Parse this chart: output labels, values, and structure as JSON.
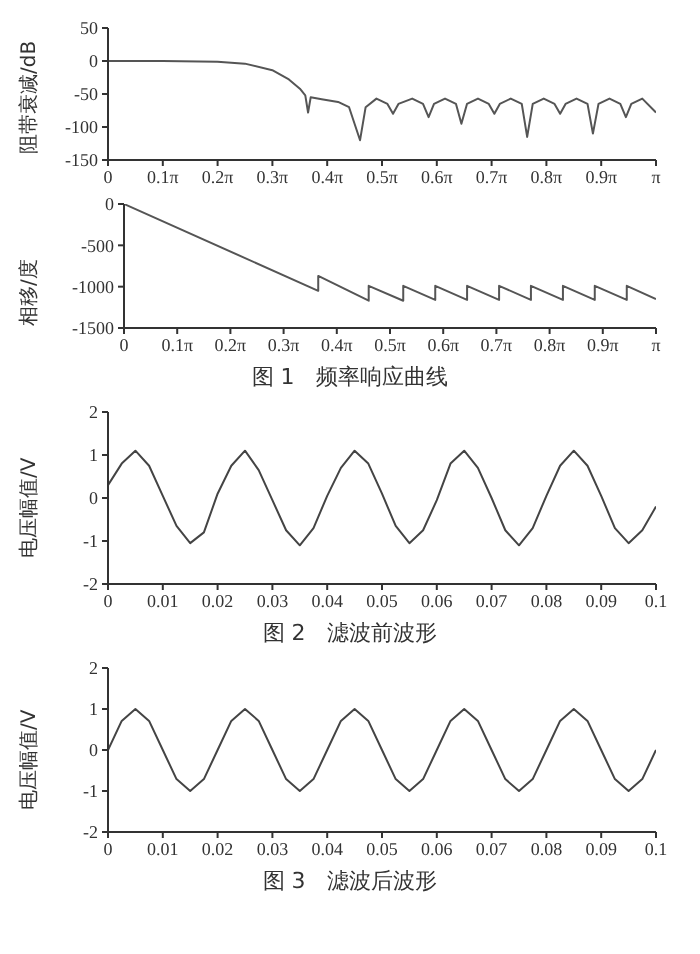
{
  "chart_data": [
    {
      "type": "line",
      "ylabel": "阻带衰减/dB",
      "xlim": [
        0,
        3.1416
      ],
      "xticks": [
        0,
        {
          "value": 0.3142,
          "label": "0.1π"
        },
        {
          "value": 0.6283,
          "label": "0.2π"
        },
        {
          "value": 0.9425,
          "label": "0.3π"
        },
        {
          "value": 1.2566,
          "label": "0.4π"
        },
        {
          "value": 1.5708,
          "label": "0.5π"
        },
        {
          "value": 1.885,
          "label": "0.6π"
        },
        {
          "value": 2.1991,
          "label": "0.7π"
        },
        {
          "value": 2.5133,
          "label": "0.8π"
        },
        {
          "value": 2.8274,
          "label": "0.9π"
        },
        {
          "value": 3.1416,
          "label": "π"
        }
      ],
      "ylim": [
        -150,
        50
      ],
      "yticks": [
        -150,
        -100,
        -50,
        0,
        50
      ],
      "series": [
        {
          "color": "#555555",
          "x": [
            0,
            0.314,
            0.628,
            0.785,
            0.942,
            1.037,
            1.1,
            1.131,
            1.147,
            1.162,
            1.225,
            1.319,
            1.382,
            1.445,
            1.477,
            1.539,
            1.602,
            1.634,
            1.665,
            1.744,
            1.806,
            1.838,
            1.869,
            1.932,
            1.995,
            2.026,
            2.058,
            2.121,
            2.183,
            2.215,
            2.246,
            2.309,
            2.372,
            2.403,
            2.435,
            2.498,
            2.56,
            2.592,
            2.623,
            2.686,
            2.749,
            2.78,
            2.812,
            2.875,
            2.937,
            2.969,
            3,
            3.063,
            3.1416
          ],
          "values": [
            0,
            0,
            -1,
            -4,
            -14,
            -28,
            -42,
            -52,
            -78,
            -55,
            -58,
            -62,
            -70,
            -120,
            -70,
            -57,
            -65,
            -80,
            -65,
            -57,
            -65,
            -85,
            -65,
            -57,
            -65,
            -95,
            -65,
            -57,
            -65,
            -80,
            -65,
            -57,
            -65,
            -115,
            -65,
            -57,
            -65,
            -80,
            -65,
            -57,
            -65,
            -110,
            -65,
            -57,
            -65,
            -85,
            -65,
            -57,
            -78
          ]
        }
      ]
    },
    {
      "type": "line",
      "ylabel": "相移/度",
      "annotations": [
        "图 1　频率响应曲线"
      ],
      "xlim": [
        0,
        3.1416
      ],
      "xticks": [
        0,
        {
          "value": 0.3142,
          "label": "0.1π"
        },
        {
          "value": 0.6283,
          "label": "0.2π"
        },
        {
          "value": 0.9425,
          "label": "0.3π"
        },
        {
          "value": 1.2566,
          "label": "0.4π"
        },
        {
          "value": 1.5708,
          "label": "0.5π"
        },
        {
          "value": 1.885,
          "label": "0.6π"
        },
        {
          "value": 2.1991,
          "label": "0.7π"
        },
        {
          "value": 2.5133,
          "label": "0.8π"
        },
        {
          "value": 2.8274,
          "label": "0.9π"
        },
        {
          "value": 3.1416,
          "label": "π"
        }
      ],
      "ylim": [
        -1500,
        0
      ],
      "yticks": [
        -1500,
        -1000,
        -500,
        0
      ],
      "series": [
        {
          "color": "#555555",
          "x": [
            0,
            1.147,
            1.147,
            1.445,
            1.445,
            1.649,
            1.649,
            1.838,
            1.838,
            2.026,
            2.026,
            2.215,
            2.215,
            2.403,
            2.403,
            2.592,
            2.592,
            2.78,
            2.78,
            2.969,
            2.969,
            3.1416
          ],
          "values": [
            0,
            -1050,
            -870,
            -1170,
            -990,
            -1170,
            -990,
            -1160,
            -990,
            -1160,
            -990,
            -1160,
            -990,
            -1160,
            -990,
            -1160,
            -990,
            -1160,
            -990,
            -1160,
            -990,
            -1150
          ]
        }
      ]
    },
    {
      "type": "line",
      "ylabel": "电压幅值/V",
      "annotations": [
        "图 2　滤波前波形"
      ],
      "xlim": [
        0,
        0.1
      ],
      "xticks": [
        0,
        0.01,
        0.02,
        0.03,
        0.04,
        0.05,
        0.06,
        0.07,
        0.08,
        0.09,
        0.1
      ],
      "ylim": [
        -2,
        2
      ],
      "yticks": [
        -2,
        -1,
        0,
        1,
        2
      ],
      "series": [
        {
          "color": "#444444",
          "x": [
            0,
            0.0025,
            0.005,
            0.0075,
            0.01,
            0.0125,
            0.015,
            0.0175,
            0.02,
            0.0225,
            0.025,
            0.0275,
            0.03,
            0.0325,
            0.035,
            0.0375,
            0.04,
            0.0425,
            0.045,
            0.0475,
            0.05,
            0.0525,
            0.055,
            0.0575,
            0.06,
            0.0625,
            0.065,
            0.0675,
            0.07,
            0.0725,
            0.075,
            0.0775,
            0.08,
            0.0825,
            0.085,
            0.0875,
            0.09,
            0.0925,
            0.095,
            0.0975,
            0.1
          ],
          "values": [
            0.3,
            0.8,
            1.1,
            0.75,
            0.05,
            -0.65,
            -1.05,
            -0.8,
            0.1,
            0.75,
            1.1,
            0.65,
            -0.05,
            -0.75,
            -1.1,
            -0.7,
            0.05,
            0.7,
            1.1,
            0.8,
            0.1,
            -0.65,
            -1.05,
            -0.75,
            -0.05,
            0.8,
            1.1,
            0.7,
            0,
            -0.75,
            -1.1,
            -0.7,
            0.05,
            0.75,
            1.1,
            0.75,
            0.05,
            -0.7,
            -1.05,
            -0.75,
            -0.2
          ]
        }
      ]
    },
    {
      "type": "line",
      "ylabel": "电压幅值/V",
      "annotations": [
        "图 3　滤波后波形"
      ],
      "xlim": [
        0,
        0.1
      ],
      "xticks": [
        0,
        0.01,
        0.02,
        0.03,
        0.04,
        0.05,
        0.06,
        0.07,
        0.08,
        0.09,
        0.1
      ],
      "ylim": [
        -2,
        2
      ],
      "yticks": [
        -2,
        -1,
        0,
        1,
        2
      ],
      "series": [
        {
          "color": "#444444",
          "x": [
            0,
            0.0025,
            0.005,
            0.0075,
            0.01,
            0.0125,
            0.015,
            0.0175,
            0.02,
            0.0225,
            0.025,
            0.0275,
            0.03,
            0.0325,
            0.035,
            0.0375,
            0.04,
            0.0425,
            0.045,
            0.0475,
            0.05,
            0.0525,
            0.055,
            0.0575,
            0.06,
            0.0625,
            0.065,
            0.0675,
            0.07,
            0.0725,
            0.075,
            0.0775,
            0.08,
            0.0825,
            0.085,
            0.0875,
            0.09,
            0.0925,
            0.095,
            0.0975,
            0.1
          ],
          "values": [
            0,
            0.71,
            1,
            0.71,
            0,
            -0.71,
            -1,
            -0.71,
            0,
            0.71,
            1,
            0.71,
            0,
            -0.71,
            -1,
            -0.71,
            0,
            0.71,
            1,
            0.71,
            0,
            -0.71,
            -1,
            -0.71,
            0,
            0.71,
            1,
            0.71,
            0,
            -0.71,
            -1,
            -0.71,
            0,
            0.71,
            1,
            0.71,
            0,
            -0.71,
            -1,
            -0.71,
            0
          ]
        }
      ]
    }
  ]
}
